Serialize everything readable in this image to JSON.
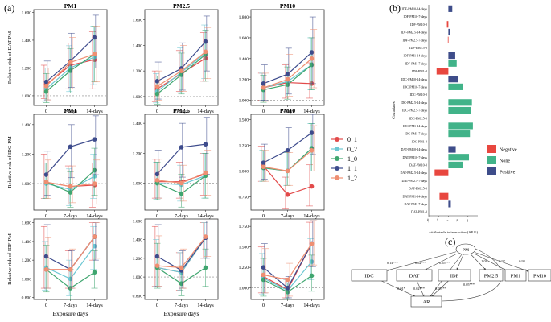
{
  "panel_labels": {
    "a": "(a)",
    "b": "(b)",
    "c": "(c)"
  },
  "colors": {
    "0_1": "#e24a4a",
    "0_2": "#6cc7d3",
    "1_0": "#3fa66f",
    "1_1": "#3d4b8c",
    "1_2": "#ef8f72",
    "Negative": "#e8473f",
    "None": "#41b389",
    "Positive": "#3e4d8a"
  },
  "legend_a": [
    "0_1",
    "0_2",
    "1_0",
    "1_1",
    "1_2"
  ],
  "x_categories": [
    "0",
    "7-days",
    "14-days"
  ],
  "x_title": "Exposure days",
  "chart_data": [
    {
      "type": "line",
      "panel": "DAT-PM1",
      "title": "PM1",
      "ylabel": "Relative risk of DAT-PM",
      "ylim": [
        0.93,
        1.62
      ],
      "yticks": [
        1.0,
        1.2,
        1.4,
        1.6
      ],
      "refline": 1.0,
      "show_xtitle": false,
      "series": [
        {
          "name": "0_1",
          "values": [
            1.08,
            1.22,
            1.26
          ],
          "lower": [
            0.98,
            1.05,
            1.05
          ],
          "upper": [
            1.22,
            1.38,
            1.46
          ]
        },
        {
          "name": "0_2",
          "values": [
            1.05,
            1.2,
            1.28
          ],
          "lower": [
            0.96,
            1.03,
            1.08
          ],
          "upper": [
            1.2,
            1.36,
            1.5
          ]
        },
        {
          "name": "1_0",
          "values": [
            1.03,
            1.18,
            1.3
          ],
          "lower": [
            0.95,
            1.02,
            1.1
          ],
          "upper": [
            1.16,
            1.34,
            1.5
          ]
        },
        {
          "name": "1_1",
          "values": [
            1.1,
            1.25,
            1.42
          ],
          "lower": [
            0.97,
            1.06,
            1.2
          ],
          "upper": [
            1.25,
            1.45,
            1.58
          ]
        },
        {
          "name": "1_2",
          "values": [
            1.07,
            1.24,
            1.3
          ],
          "lower": [
            0.97,
            1.05,
            1.1
          ],
          "upper": [
            1.2,
            1.42,
            1.5
          ]
        }
      ]
    },
    {
      "type": "line",
      "panel": "DAT-PM2.5",
      "title": "PM2.5",
      "ylabel": "",
      "ylim": [
        0.93,
        1.68
      ],
      "yticks": [
        1.0,
        1.2,
        1.4,
        1.6
      ],
      "refline": 1.0,
      "show_xtitle": false,
      "series": [
        {
          "name": "0_1",
          "values": [
            1.06,
            1.18,
            1.3
          ],
          "lower": [
            0.96,
            1.04,
            1.12
          ],
          "upper": [
            1.2,
            1.36,
            1.5
          ]
        },
        {
          "name": "0_2",
          "values": [
            1.04,
            1.19,
            1.34
          ],
          "lower": [
            0.95,
            1.03,
            1.14
          ],
          "upper": [
            1.18,
            1.38,
            1.56
          ]
        },
        {
          "name": "1_0",
          "values": [
            1.02,
            1.17,
            1.33
          ],
          "lower": [
            0.94,
            1.02,
            1.12
          ],
          "upper": [
            1.16,
            1.34,
            1.52
          ]
        },
        {
          "name": "1_1",
          "values": [
            1.12,
            1.22,
            1.43
          ],
          "lower": [
            0.98,
            1.05,
            1.2
          ],
          "upper": [
            1.27,
            1.42,
            1.63
          ]
        },
        {
          "name": "1_2",
          "values": [
            1.08,
            1.2,
            1.35
          ],
          "lower": [
            0.97,
            1.04,
            1.14
          ],
          "upper": [
            1.2,
            1.4,
            1.54
          ]
        }
      ]
    },
    {
      "type": "line",
      "panel": "DAT-PM10",
      "title": "PM10",
      "ylabel": "",
      "ylim": [
        0.95,
        1.87
      ],
      "yticks": [
        1.0,
        1.2,
        1.4,
        1.6,
        1.8
      ],
      "refline": 1.0,
      "show_xtitle": false,
      "series": [
        {
          "name": "0_1",
          "values": [
            1.12,
            1.17,
            1.16
          ],
          "lower": [
            1.0,
            1.02,
            1.02
          ],
          "upper": [
            1.26,
            1.34,
            1.36
          ]
        },
        {
          "name": "0_2",
          "values": [
            1.12,
            1.18,
            1.34
          ],
          "lower": [
            1.0,
            1.03,
            1.1
          ],
          "upper": [
            1.26,
            1.35,
            1.6
          ]
        },
        {
          "name": "1_0",
          "values": [
            1.1,
            1.15,
            1.34
          ],
          "lower": [
            0.98,
            1.01,
            1.1
          ],
          "upper": [
            1.24,
            1.32,
            1.6
          ]
        },
        {
          "name": "1_1",
          "values": [
            1.16,
            1.25,
            1.46
          ],
          "lower": [
            1.0,
            1.06,
            1.16
          ],
          "upper": [
            1.34,
            1.5,
            1.8
          ]
        },
        {
          "name": "1_2",
          "values": [
            1.12,
            1.2,
            1.4
          ],
          "lower": [
            0.99,
            1.04,
            1.12
          ],
          "upper": [
            1.26,
            1.44,
            1.68
          ]
        }
      ]
    },
    {
      "type": "line",
      "panel": "IDC-PM1",
      "title": "PM1",
      "ylabel": "Relative risk of IDC-PM",
      "ylim": [
        0.82,
        1.47
      ],
      "yticks": [
        1.0,
        1.2,
        1.4
      ],
      "refline": 1.0,
      "show_xtitle": false,
      "series": [
        {
          "name": "0_1",
          "values": [
            1.01,
            0.98,
            0.99
          ],
          "lower": [
            0.9,
            0.86,
            0.84
          ],
          "upper": [
            1.2,
            1.12,
            1.14
          ]
        },
        {
          "name": "0_2",
          "values": [
            1.0,
            0.96,
            1.05
          ],
          "lower": [
            0.9,
            0.85,
            0.9
          ],
          "upper": [
            1.14,
            1.1,
            1.2
          ]
        },
        {
          "name": "1_0",
          "values": [
            1.01,
            0.94,
            1.09
          ],
          "lower": [
            0.9,
            0.84,
            0.92
          ],
          "upper": [
            1.14,
            1.08,
            1.24
          ]
        },
        {
          "name": "1_1",
          "values": [
            1.06,
            1.25,
            1.3
          ],
          "lower": [
            0.92,
            1.04,
            1.06
          ],
          "upper": [
            1.22,
            1.4,
            1.46
          ]
        },
        {
          "name": "1_2",
          "values": [
            1.01,
            0.98,
            1.0
          ],
          "lower": [
            0.9,
            0.87,
            0.86
          ],
          "upper": [
            1.16,
            1.12,
            1.16
          ]
        }
      ]
    },
    {
      "type": "line",
      "panel": "IDC-PM2.5",
      "title": "PM2.5",
      "ylabel": "",
      "ylim": [
        0.82,
        1.46
      ],
      "yticks": [
        1.0,
        1.2,
        1.4
      ],
      "refline": 1.0,
      "show_xtitle": false,
      "series": [
        {
          "name": "0_1",
          "values": [
            1.01,
            1.01,
            1.06
          ],
          "lower": [
            0.9,
            0.9,
            0.92
          ],
          "upper": [
            1.16,
            1.14,
            1.2
          ]
        },
        {
          "name": "0_2",
          "values": [
            1.0,
            0.99,
            1.05
          ],
          "lower": [
            0.89,
            0.88,
            0.9
          ],
          "upper": [
            1.14,
            1.12,
            1.2
          ]
        },
        {
          "name": "1_0",
          "values": [
            1.0,
            0.93,
            1.05
          ],
          "lower": [
            0.89,
            0.84,
            0.9
          ],
          "upper": [
            1.14,
            1.06,
            1.2
          ]
        },
        {
          "name": "1_1",
          "values": [
            1.06,
            1.24,
            1.26
          ],
          "lower": [
            0.9,
            1.04,
            1.06
          ],
          "upper": [
            1.22,
            1.4,
            1.44
          ]
        },
        {
          "name": "1_2",
          "values": [
            1.02,
            1.0,
            1.07
          ],
          "lower": [
            0.9,
            0.88,
            0.92
          ],
          "upper": [
            1.16,
            1.12,
            1.22
          ]
        }
      ]
    },
    {
      "type": "line",
      "panel": "IDC-PM10",
      "title": "PM10",
      "ylabel": "",
      "ylim": [
        0.62,
        1.55
      ],
      "yticks": [
        0.75,
        1.0,
        1.25,
        1.5
      ],
      "refline": 1.0,
      "show_xtitle": false,
      "series": [
        {
          "name": "0_1",
          "values": [
            1.05,
            0.77,
            0.85
          ],
          "lower": [
            0.9,
            0.63,
            0.66
          ],
          "upper": [
            1.24,
            0.94,
            1.06
          ]
        },
        {
          "name": "0_2",
          "values": [
            1.03,
            1.0,
            1.22
          ],
          "lower": [
            0.9,
            0.86,
            1.0
          ],
          "upper": [
            1.2,
            1.18,
            1.46
          ]
        },
        {
          "name": "1_0",
          "values": [
            1.03,
            1.0,
            1.22
          ],
          "lower": [
            0.9,
            0.86,
            1.0
          ],
          "upper": [
            1.2,
            1.18,
            1.46
          ]
        },
        {
          "name": "1_1",
          "values": [
            1.08,
            1.2,
            1.37
          ],
          "lower": [
            0.92,
            1.0,
            1.16
          ],
          "upper": [
            1.26,
            1.42,
            1.55
          ]
        },
        {
          "name": "1_2",
          "values": [
            1.04,
            1.0,
            1.2
          ],
          "lower": [
            0.9,
            0.86,
            1.0
          ],
          "upper": [
            1.2,
            1.18,
            1.44
          ]
        }
      ]
    },
    {
      "type": "line",
      "panel": "IDF-PM1",
      "title": "",
      "ylabel": "Relative risk of IDF-PM",
      "ylim": [
        0.78,
        1.64
      ],
      "yticks": [
        0.8,
        1.0,
        1.2,
        1.4,
        1.6
      ],
      "refline": 1.0,
      "show_xtitle": true,
      "series": [
        {
          "name": "0_1",
          "values": [
            1.1,
            1.1,
            1.45
          ],
          "lower": [
            0.9,
            0.9,
            1.2
          ],
          "upper": [
            1.56,
            1.3,
            1.6
          ]
        },
        {
          "name": "0_2",
          "values": [
            1.12,
            1.0,
            1.35
          ],
          "lower": [
            0.88,
            0.82,
            1.1
          ],
          "upper": [
            1.4,
            1.2,
            1.56
          ]
        },
        {
          "name": "1_0",
          "values": [
            1.1,
            0.9,
            1.07
          ],
          "lower": [
            0.86,
            0.78,
            0.9
          ],
          "upper": [
            1.36,
            1.1,
            1.3
          ]
        },
        {
          "name": "1_1",
          "values": [
            1.24,
            1.1,
            1.45
          ],
          "lower": [
            0.9,
            0.9,
            1.2
          ],
          "upper": [
            1.58,
            1.3,
            1.6
          ]
        },
        {
          "name": "1_2",
          "values": [
            1.1,
            1.1,
            1.45
          ],
          "lower": [
            0.9,
            0.9,
            1.22
          ],
          "upper": [
            1.44,
            1.32,
            1.6
          ]
        }
      ]
    },
    {
      "type": "line",
      "panel": "IDF-PM2.5",
      "title": "",
      "ylabel": "",
      "ylim": [
        0.76,
        1.62
      ],
      "yticks": [
        0.8,
        1.0,
        1.2,
        1.4,
        1.6
      ],
      "refline": 1.0,
      "show_xtitle": true,
      "series": [
        {
          "name": "0_1",
          "values": [
            1.1,
            1.05,
            1.42
          ],
          "lower": [
            0.9,
            0.86,
            1.2
          ],
          "upper": [
            1.54,
            1.26,
            1.58
          ]
        },
        {
          "name": "0_2",
          "values": [
            1.1,
            1.05,
            1.42
          ],
          "lower": [
            0.9,
            0.86,
            1.2
          ],
          "upper": [
            1.4,
            1.26,
            1.58
          ]
        },
        {
          "name": "1_0",
          "values": [
            1.1,
            0.93,
            1.1
          ],
          "lower": [
            0.88,
            0.8,
            0.9
          ],
          "upper": [
            1.36,
            1.12,
            1.3
          ]
        },
        {
          "name": "1_1",
          "values": [
            1.22,
            1.07,
            1.42
          ],
          "lower": [
            0.9,
            0.88,
            1.2
          ],
          "upper": [
            1.56,
            1.28,
            1.6
          ]
        },
        {
          "name": "1_2",
          "values": [
            1.12,
            1.1,
            1.43
          ],
          "lower": [
            0.9,
            0.88,
            1.22
          ],
          "upper": [
            1.44,
            1.3,
            1.6
          ]
        }
      ]
    },
    {
      "type": "line",
      "panel": "IDF-PM10",
      "title": "",
      "ylabel": "",
      "ylim": [
        0.86,
        1.84
      ],
      "yticks": [
        1.0,
        1.25,
        1.5,
        1.75
      ],
      "refline": 1.0,
      "show_xtitle": false,
      "series": [
        {
          "name": "0_1",
          "values": [
            1.14,
            0.98,
            1.54
          ],
          "lower": [
            0.94,
            0.88,
            1.26
          ],
          "upper": [
            1.5,
            1.12,
            1.8
          ]
        },
        {
          "name": "0_2",
          "values": [
            1.12,
            0.97,
            1.32
          ],
          "lower": [
            0.92,
            0.87,
            1.1
          ],
          "upper": [
            1.42,
            1.1,
            1.6
          ]
        },
        {
          "name": "1_0",
          "values": [
            1.1,
            0.95,
            1.15
          ],
          "lower": [
            0.9,
            0.86,
            0.96
          ],
          "upper": [
            1.36,
            1.06,
            1.4
          ]
        },
        {
          "name": "1_1",
          "values": [
            1.25,
            1.0,
            1.54
          ],
          "lower": [
            0.94,
            0.88,
            1.26
          ],
          "upper": [
            1.54,
            1.14,
            1.82
          ]
        },
        {
          "name": "1_2",
          "values": [
            1.16,
            1.1,
            1.54
          ],
          "lower": [
            0.94,
            0.9,
            1.28
          ],
          "upper": [
            1.48,
            1.3,
            1.82
          ]
        }
      ]
    },
    {
      "type": "bar",
      "panel": "b",
      "orientation": "horizontal",
      "xlabel": "Attributable to interaction (AP %)",
      "ylabel": "Covariates",
      "xlim": [
        -20,
        30
      ],
      "xticks": [
        -20,
        -10,
        0,
        10,
        20
      ],
      "categories": [
        "IDF-PM10-14-days",
        "IDF-PM10-7-days",
        "IDF-PM10-0",
        "IDF-PM2.5-14-days",
        "IDF-PM2.5-7-days",
        "IDF-PM2.5-0",
        "IDF-PM1-14-days",
        "IDF-PM1-7-days",
        "IDF-PM1-0",
        "IDC-PM10-14-days",
        "IDC-PM10-7-days",
        "IDC-PM10-0",
        "IDC-PM2.5-14-days",
        "IDC-PM2.5-7-days",
        "IDC-PM2.5-0",
        "IDC-PM1-14-days",
        "IDC-PM1-7-days",
        "IDC-PM1-0",
        "DAT-PM10-14-days",
        "DAT-PM10-7-days",
        "DAT-PM10-0",
        "DAT-PM2.5-14-days",
        "DAT-PM2.5-7-days",
        "DAT-PM2.5-0",
        "DAT-PM1-14-days",
        "DAT-PM1-7-days",
        "DAT-PM1-0"
      ],
      "values": [
        4,
        0,
        -1.5,
        1.5,
        -0.5,
        0,
        7,
        8.5,
        -12,
        10,
        15,
        0,
        24,
        23,
        0,
        25,
        22,
        0,
        7.5,
        21,
        15,
        -14,
        0,
        0,
        -9,
        2.5,
        0
      ],
      "effect": [
        "Positive",
        "None",
        "Negative",
        "Positive",
        "Negative",
        "None",
        "Positive",
        "None",
        "Negative",
        "Positive",
        "None",
        "None",
        "None",
        "None",
        "None",
        "None",
        "None",
        "None",
        "Positive",
        "None",
        "None",
        "Negative",
        "None",
        "None",
        "Negative",
        "Positive",
        "None"
      ],
      "legend": [
        "Negative",
        "None",
        "Positive"
      ]
    },
    {
      "type": "diagram",
      "panel": "c",
      "nodes": {
        "pm": "PM",
        "idc": "IDC",
        "dat": "DAT",
        "idf": "IDF",
        "ar": "AR",
        "pm25": "PM2.5",
        "pm1": "PM1",
        "pm10": "PM10"
      },
      "paths": {
        "pm_idc": "0.14***",
        "pm_dat": "0.62***",
        "pm_idf": "0.65***",
        "pm_ar": "0.05***",
        "pm_pm25": "1.01",
        "pm_pm1": "0.97",
        "pm_pm10": "0.93",
        "idc_ar": "0.01*",
        "dat_ar": "0.02***",
        "idf_ar": "0.05***"
      }
    }
  ]
}
